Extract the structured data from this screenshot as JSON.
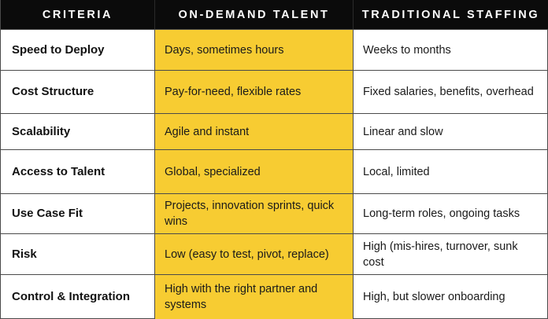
{
  "headers": {
    "criteria": "CRITERIA",
    "on_demand": "ON-DEMAND TALENT",
    "traditional": "TRADITIONAL STAFFING"
  },
  "rows": [
    {
      "criteria": "Speed to Deploy",
      "on_demand": "Days, sometimes hours",
      "traditional": "Weeks to months"
    },
    {
      "criteria": "Cost Structure",
      "on_demand": "Pay-for-need, flexible rates",
      "traditional": "Fixed salaries, benefits, overhead"
    },
    {
      "criteria": "Scalability",
      "on_demand": "Agile and instant",
      "traditional": "Linear and slow"
    },
    {
      "criteria": "Access to Talent",
      "on_demand": "Global, specialized",
      "traditional": "Local, limited"
    },
    {
      "criteria": "Use Case Fit",
      "on_demand": "Projects, innovation sprints, quick wins",
      "traditional": "Long-term roles, ongoing tasks"
    },
    {
      "criteria": "Risk",
      "on_demand": "Low (easy to test, pivot, replace)",
      "traditional": "High (mis-hires, turnover, sunk cost"
    },
    {
      "criteria": "Control & Integration",
      "on_demand": "High with the right partner and systems",
      "traditional": "High, but slower onboarding"
    }
  ],
  "colors": {
    "header_bg": "#0b0b0b",
    "header_text": "#ffffff",
    "highlight": "#f7cc32"
  }
}
